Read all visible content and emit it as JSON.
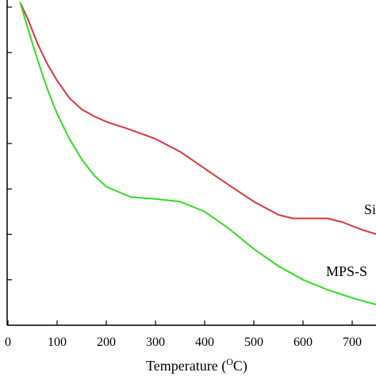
{
  "chart_data": {
    "type": "line",
    "xlabel_prefix": "Temperature (",
    "xlabel_sup": "O",
    "xlabel_suffix": "C)",
    "xlim": [
      0,
      750
    ],
    "ylim": [
      0,
      7
    ],
    "x_ticks": [
      "0",
      "100",
      "200",
      "300",
      "400",
      "500",
      "600",
      "700"
    ],
    "y_tick_count": 7,
    "grid": false,
    "series": [
      {
        "name": "Si",
        "color": "#d9363e",
        "points": [
          [
            25,
            7.1
          ],
          [
            40,
            6.75
          ],
          [
            60,
            6.2
          ],
          [
            80,
            5.75
          ],
          [
            100,
            5.38
          ],
          [
            125,
            5.0
          ],
          [
            150,
            4.75
          ],
          [
            175,
            4.6
          ],
          [
            200,
            4.48
          ],
          [
            250,
            4.3
          ],
          [
            300,
            4.1
          ],
          [
            350,
            3.82
          ],
          [
            400,
            3.45
          ],
          [
            450,
            3.08
          ],
          [
            500,
            2.72
          ],
          [
            550,
            2.43
          ],
          [
            580,
            2.35
          ],
          [
            620,
            2.35
          ],
          [
            650,
            2.35
          ],
          [
            680,
            2.27
          ],
          [
            720,
            2.1
          ],
          [
            750,
            2.0
          ]
        ]
      },
      {
        "name": "MPS-S",
        "color": "#33dd22",
        "points": [
          [
            25,
            7.1
          ],
          [
            40,
            6.55
          ],
          [
            60,
            5.85
          ],
          [
            80,
            5.2
          ],
          [
            100,
            4.65
          ],
          [
            125,
            4.1
          ],
          [
            150,
            3.65
          ],
          [
            175,
            3.3
          ],
          [
            200,
            3.05
          ],
          [
            250,
            2.82
          ],
          [
            300,
            2.78
          ],
          [
            350,
            2.72
          ],
          [
            400,
            2.5
          ],
          [
            450,
            2.12
          ],
          [
            500,
            1.68
          ],
          [
            550,
            1.3
          ],
          [
            600,
            1.0
          ],
          [
            650,
            0.78
          ],
          [
            700,
            0.6
          ],
          [
            750,
            0.45
          ]
        ]
      }
    ]
  }
}
